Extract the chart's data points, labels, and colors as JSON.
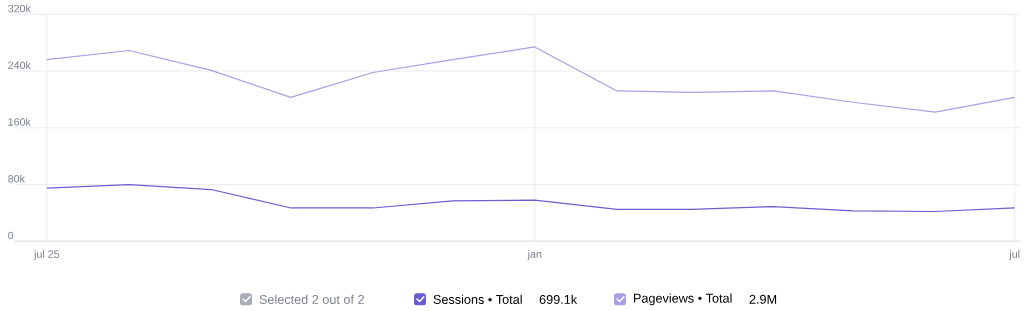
{
  "chart_data": {
    "type": "line",
    "x": [
      "2025-07",
      "2025-08",
      "2025-09",
      "2025-10",
      "2025-11",
      "2025-12",
      "2026-01",
      "2026-02",
      "2026-03",
      "2026-04",
      "2026-05",
      "2026-06",
      "2026-07"
    ],
    "series": [
      {
        "name": "Sessions • Total",
        "color": "#6a5fd2",
        "values": [
          75000,
          80000,
          73000,
          47000,
          47000,
          57000,
          58000,
          45000,
          45000,
          49000,
          43000,
          42000,
          47000
        ]
      },
      {
        "name": "Pageviews • Total",
        "color": "#a99fe6",
        "values": [
          256000,
          269000,
          241000,
          203000,
          238000,
          256000,
          274000,
          212000,
          210000,
          212000,
          196000,
          182000,
          203000
        ]
      }
    ],
    "xlim": [
      "2025-06-19",
      "2026-07-03"
    ],
    "xticks": [
      {
        "value": "2025-07",
        "label": "jul 25"
      },
      {
        "value": "2026-01",
        "label": "jan"
      },
      {
        "value": "2026-07",
        "label": "jul"
      }
    ],
    "ylim": [
      0,
      320000
    ],
    "yticks": [
      0,
      {
        "value": 80000,
        "label": "80k"
      },
      {
        "value": 160000,
        "label": "160k"
      },
      {
        "value": 240000,
        "label": "240k"
      },
      {
        "value": 320000,
        "label": "320k"
      }
    ],
    "grid": true,
    "legend": "bottom",
    "annotations": [
      "Selected 2 out of 2",
      "699.1k",
      "2.9M"
    ]
  }
}
